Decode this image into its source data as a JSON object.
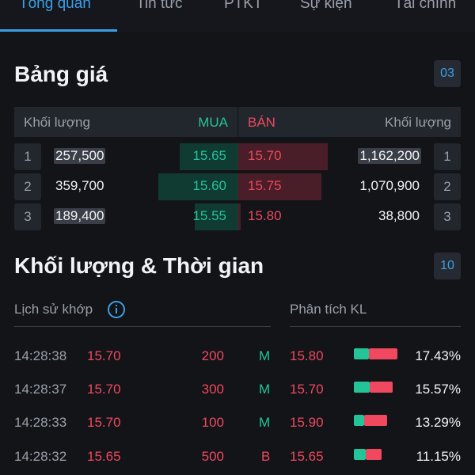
{
  "tabs": [
    "Tổng quan",
    "Tin tức",
    "PTKT",
    "Sự kiện",
    "Tài chính"
  ],
  "order_book": {
    "title": "Bảng giá",
    "badge": "03",
    "headers": {
      "buy_volume": "Khối lượng",
      "buy": "MUA",
      "sell": "BÁN",
      "sell_volume": "Khối lượng"
    },
    "rows": [
      {
        "level": "1",
        "buy_volume": "257,500",
        "buy_price": "15.65",
        "sell_price": "15.70",
        "sell_volume": "1,162,200",
        "buy_fill": 0.27,
        "sell_fill": 0.42
      },
      {
        "level": "2",
        "buy_volume": "359,700",
        "buy_price": "15.60",
        "sell_price": "15.75",
        "sell_volume": "1,070,900",
        "buy_fill": 0.37,
        "sell_fill": 0.39
      },
      {
        "level": "3",
        "buy_volume": "189,400",
        "buy_price": "15.55",
        "sell_price": "15.80",
        "sell_volume": "38,800",
        "buy_fill": 0.2,
        "sell_fill": 0.01
      }
    ]
  },
  "volume_time": {
    "title": "Khối lượng & Thời gian",
    "badge": "10",
    "history_label": "Lịch sử khớp",
    "analysis_label": "Phân tích KL",
    "trades": [
      {
        "time": "14:28:38",
        "price": "15.70",
        "volume": "200",
        "side": "M"
      },
      {
        "time": "14:28:37",
        "price": "15.70",
        "volume": "300",
        "side": "M"
      },
      {
        "time": "14:28:33",
        "price": "15.70",
        "volume": "100",
        "side": "M"
      },
      {
        "time": "14:28:32",
        "price": "15.65",
        "volume": "500",
        "side": "B"
      }
    ],
    "analysis": [
      {
        "price": "15.80",
        "percent": "17.43%",
        "buy_share": 0.35,
        "total_fill": 1.0
      },
      {
        "price": "15.70",
        "percent": "15.57%",
        "buy_share": 0.4,
        "total_fill": 0.89
      },
      {
        "price": "15.90",
        "percent": "13.29%",
        "buy_share": 0.3,
        "total_fill": 0.76
      },
      {
        "price": "15.65",
        "percent": "11.15%",
        "buy_share": 0.42,
        "total_fill": 0.64
      }
    ]
  },
  "colors": {
    "accent": "#3b9fe6",
    "buy": "#22c498",
    "sell": "#f0485f",
    "background": "#121418"
  }
}
